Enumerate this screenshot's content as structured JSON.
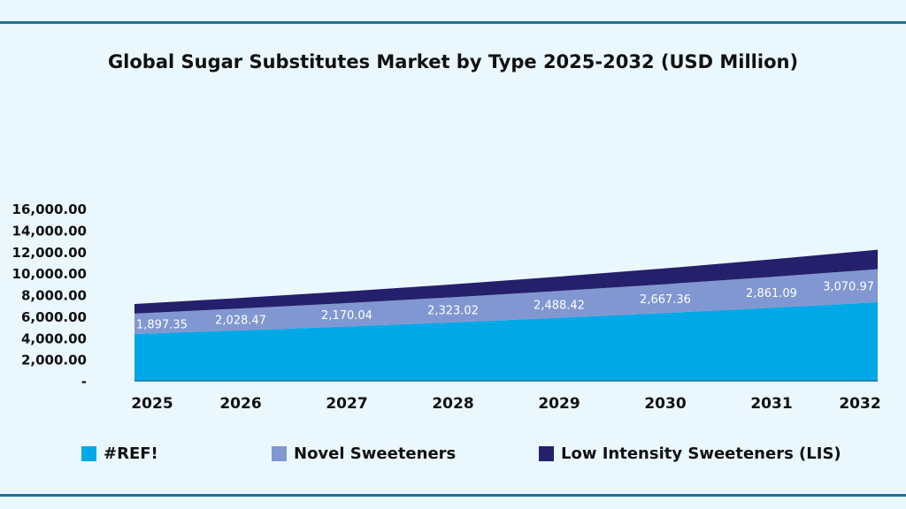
{
  "chart_data": {
    "type": "area",
    "stacked": true,
    "title": "Global Sugar Substitutes Market by Type 2025-2032 (USD Million)",
    "xlabel": "",
    "ylabel": "",
    "categories": [
      "2025",
      "2026",
      "2027",
      "2028",
      "2029",
      "2030",
      "2031",
      "2032"
    ],
    "ylim": [
      0,
      16000
    ],
    "yticks": [
      0,
      2000,
      4000,
      6000,
      8000,
      10000,
      12000,
      14000,
      16000
    ],
    "ytick_labels": [
      "-",
      "2,000.00",
      "4,000.00",
      "6,000.00",
      "8,000.00",
      "10,000.00",
      "12,000.00",
      "14,000.00",
      "16,000.00"
    ],
    "grid": false,
    "legend_position": "bottom",
    "series": [
      {
        "name": "#REF!",
        "color": "#00a8e8",
        "values": [
          4350,
          4690,
          5050,
          5440,
          5860,
          6310,
          6790,
          7300
        ]
      },
      {
        "name": "Novel Sweeteners",
        "color": "#8197d1",
        "values": [
          1897.35,
          2028.47,
          2170.04,
          2323.02,
          2488.42,
          2667.36,
          2861.09,
          3070.97
        ],
        "data_labels": [
          "1,897.35",
          "2,028.47",
          "2,170.04",
          "2,323.02",
          "2,488.42",
          "2,667.36",
          "2,861.09",
          "3,070.97"
        ]
      },
      {
        "name": "Low Intensity Sweeteners (LIS)",
        "color": "#24206b",
        "values": [
          890,
          980,
          1090,
          1200,
          1330,
          1470,
          1630,
          1800
        ]
      }
    ]
  }
}
